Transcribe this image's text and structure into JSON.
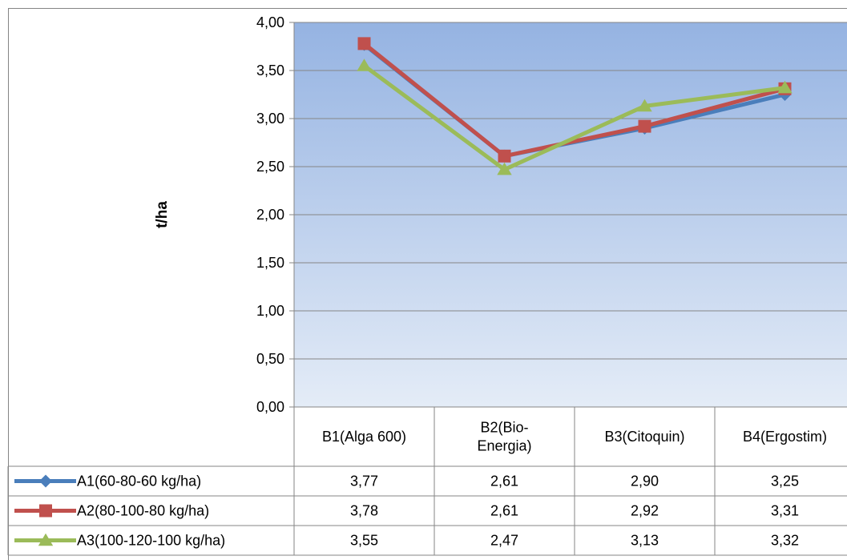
{
  "chart_data": {
    "type": "line",
    "title": "",
    "xlabel": "",
    "ylabel": "t/ha",
    "ylim": [
      0,
      4
    ],
    "y_ticks": [
      "0,00",
      "0,50",
      "1,00",
      "1,50",
      "2,00",
      "2,50",
      "3,00",
      "3,50",
      "4,00"
    ],
    "grid": true,
    "legend": "data-table-left",
    "categories": [
      [
        "B1(Alga 600)"
      ],
      [
        "B2(Bio-",
        "Energia)"
      ],
      [
        "B3(Citoquin)"
      ],
      [
        "B4(Ergostim)"
      ]
    ],
    "series": [
      {
        "name": "A1(60-80-60 kg/ha)",
        "values": [
          3.77,
          2.61,
          2.9,
          3.25
        ],
        "labels": [
          "3,77",
          "2,61",
          "2,90",
          "3,25"
        ],
        "color": "#4a7ebb",
        "marker": "diamond"
      },
      {
        "name": "A2(80-100-80 kg/ha)",
        "values": [
          3.78,
          2.61,
          2.92,
          3.31
        ],
        "labels": [
          "3,78",
          "2,61",
          "2,92",
          "3,31"
        ],
        "color": "#c0504d",
        "marker": "square"
      },
      {
        "name": "A3(100-120-100 kg/ha)",
        "values": [
          3.55,
          2.47,
          3.13,
          3.32
        ],
        "labels": [
          "3,55",
          "2,47",
          "3,13",
          "3,32"
        ],
        "color": "#9bbb59",
        "marker": "triangle"
      }
    ]
  }
}
